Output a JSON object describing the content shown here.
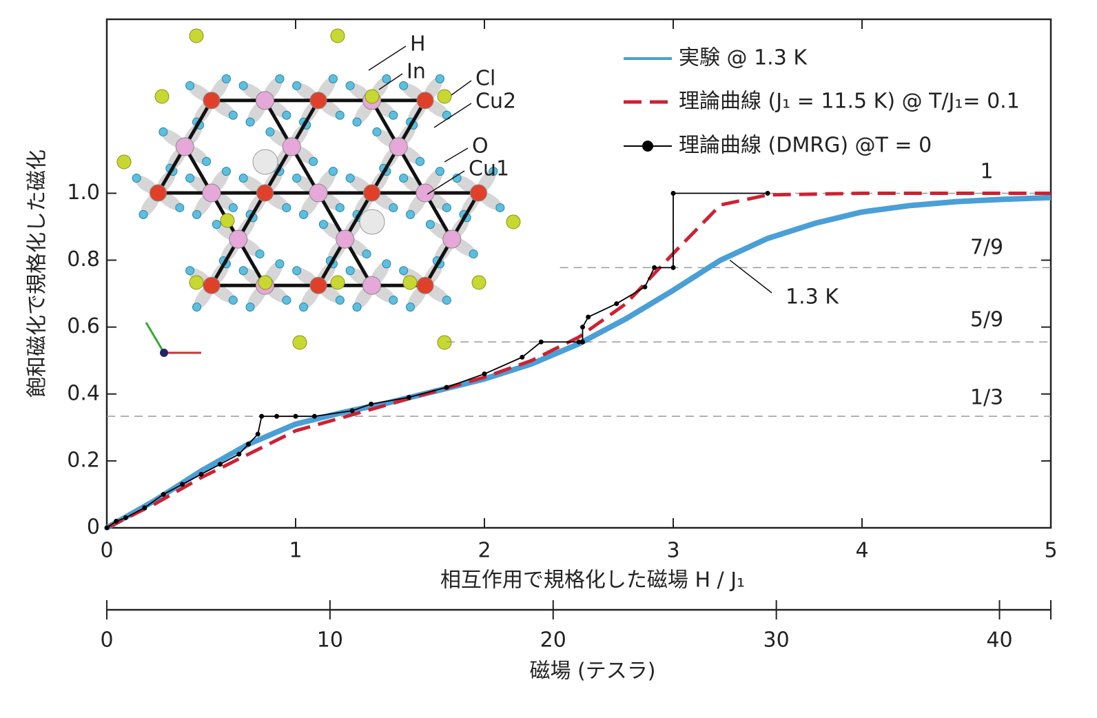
{
  "chart_data": {
    "type": "line",
    "xlabel": "相互作用で規格化した磁場 H / J₁",
    "ylabel": "飽和磁化で規格化した磁化",
    "xlim": [
      0,
      5
    ],
    "xticks": [
      0,
      1,
      2,
      3,
      4,
      5
    ],
    "ylim": [
      0,
      1.52
    ],
    "yticks": [
      0,
      0.2,
      0.4,
      0.6,
      0.8,
      {
        "value": 1,
        "label": "1.0"
      }
    ],
    "secondary_x": {
      "label": "磁場 (テスラ)",
      "xlim": [
        0,
        42.3
      ],
      "xticks": [
        0,
        10,
        20,
        30,
        40
      ]
    },
    "series": [
      {
        "name": "実験 @ 1.3 K",
        "color": "#4a9fd6",
        "style": "solid",
        "x": [
          0,
          0.25,
          0.5,
          0.75,
          1,
          1.25,
          1.5,
          1.75,
          2,
          2.25,
          2.5,
          2.75,
          3,
          3.25,
          3.5,
          3.75,
          4,
          4.25,
          4.5,
          4.75,
          5
        ],
        "values": [
          0,
          0.08,
          0.17,
          0.25,
          0.31,
          0.345,
          0.375,
          0.41,
          0.445,
          0.49,
          0.55,
          0.625,
          0.71,
          0.8,
          0.865,
          0.91,
          0.944,
          0.963,
          0.975,
          0.982,
          0.987
        ]
      },
      {
        "name": "理論曲線 (J₁ = 11.5 K) @ T/J₁= 0.1",
        "color": "#cc2233",
        "style": "dashed",
        "x": [
          0,
          0.25,
          0.5,
          0.75,
          1,
          1.25,
          1.5,
          1.75,
          2,
          2.25,
          2.5,
          2.75,
          3,
          3.25,
          3.5,
          4,
          5
        ],
        "values": [
          0,
          0.07,
          0.15,
          0.22,
          0.29,
          0.33,
          0.37,
          0.41,
          0.45,
          0.5,
          0.57,
          0.67,
          0.82,
          0.965,
          0.995,
          1.0,
          1.0
        ]
      },
      {
        "name": "理論曲線 (DMRG) @T = 0",
        "color": "#000000",
        "style": "markers",
        "x": [
          0,
          0.05,
          0.1,
          0.2,
          0.3,
          0.4,
          0.5,
          0.6,
          0.7,
          0.75,
          0.8,
          0.82,
          0.9,
          1.0,
          1.1,
          1.3,
          1.4,
          1.6,
          1.8,
          2.0,
          2.2,
          2.3,
          2.5,
          2.52,
          2.52,
          2.55,
          2.7,
          2.85,
          2.9,
          3.0,
          3.0,
          3.5
        ],
        "values": [
          0,
          0.02,
          0.03,
          0.06,
          0.1,
          0.13,
          0.16,
          0.19,
          0.22,
          0.25,
          0.28,
          0.3333,
          0.3333,
          0.3333,
          0.3333,
          0.35,
          0.37,
          0.39,
          0.42,
          0.46,
          0.51,
          0.5556,
          0.5556,
          0.5556,
          0.6,
          0.63,
          0.67,
          0.72,
          0.7778,
          0.7778,
          1.0,
          1.0
        ]
      }
    ],
    "reference_lines": [
      {
        "label": "1",
        "value": 1,
        "x_start": 3.5
      },
      {
        "label": "7/9",
        "value": 0.7778,
        "x_start": 2.4
      },
      {
        "label": "5/9",
        "value": 0.5556,
        "x_start": 1.8
      },
      {
        "label": "1/3",
        "value": 0.3333,
        "x_start": 0
      }
    ],
    "annotation": {
      "text": "1.3 K",
      "x": 3.3,
      "y": 0.8
    },
    "inset_labels": [
      "H",
      "In",
      "Cl",
      "Cu2",
      "O",
      "Cu1"
    ]
  }
}
